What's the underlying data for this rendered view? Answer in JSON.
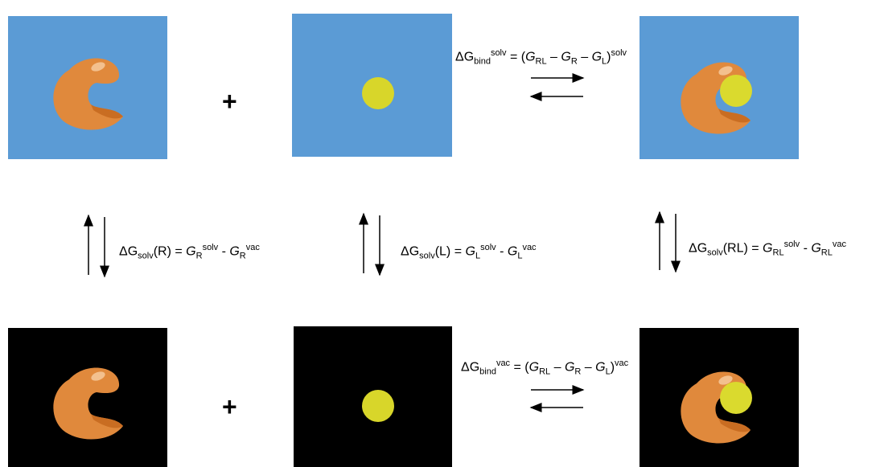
{
  "plus_top": "+",
  "plus_bottom": "+",
  "equations": {
    "bind_solv": [
      "ΔG",
      "bind",
      "solv",
      " = (",
      "G",
      "RL",
      " – ",
      "G",
      "R",
      " – ",
      "G",
      "L",
      ")",
      "solv"
    ],
    "bind_vac": [
      "ΔG",
      "bind",
      "vac",
      " = (",
      "G",
      "RL",
      " – ",
      "G",
      "R",
      " – ",
      "G",
      "L",
      ")",
      "vac"
    ],
    "solv_R": [
      "ΔG",
      "solv",
      "(R) = ",
      "G",
      "R",
      "solv",
      " - ",
      "G",
      "R",
      "vac"
    ],
    "solv_L": [
      "ΔG",
      "solv",
      "(L) = ",
      "G",
      "L",
      "solv",
      " - ",
      "G",
      "L",
      "vac"
    ],
    "solv_RL": [
      "ΔG",
      "solv",
      "(RL) = ",
      "G",
      "RL",
      "solv",
      " - ",
      "G",
      "RL",
      "vac"
    ]
  }
}
